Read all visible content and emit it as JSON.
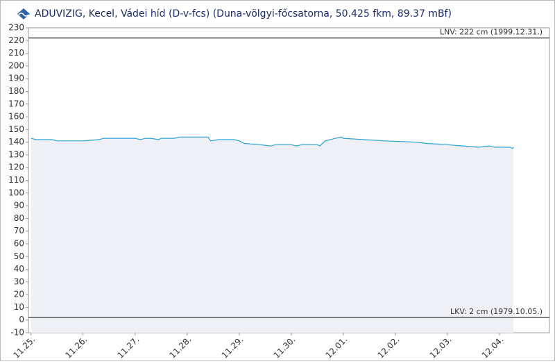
{
  "chart_data": {
    "type": "line",
    "title": "ADUVIZIG, Kecel, Vádei híd  (D-v-fcs) (Duna-völgyi-főcsatorna, 50.425 fkm, 89.37 mBf)",
    "x": [
      0,
      0.1,
      0.4,
      0.5,
      1.0,
      1.3,
      1.4,
      2.0,
      2.1,
      2.2,
      2.3,
      2.45,
      2.5,
      2.6,
      2.75,
      2.85,
      2.95,
      3.4,
      3.45,
      3.6,
      3.9,
      4.0,
      4.1,
      4.4,
      4.6,
      4.7,
      5.0,
      5.1,
      5.2,
      5.5,
      5.55,
      5.65,
      5.75,
      5.85,
      5.95,
      6.0,
      6.4,
      6.8,
      7.4,
      7.6,
      8.0,
      8.3,
      8.6,
      8.8,
      8.9,
      9.2,
      9.25,
      9.27
    ],
    "series": [
      {
        "color": "#29a3d6",
        "fill": "#eef0f6",
        "values": [
          143,
          142,
          142,
          141,
          141,
          142,
          143,
          143,
          142,
          143,
          143,
          142,
          143,
          143,
          143,
          144,
          144,
          144,
          141,
          142,
          142,
          141,
          139,
          138,
          137,
          138,
          138,
          137,
          138,
          138,
          137,
          141,
          142,
          143,
          144,
          143,
          142,
          141,
          140,
          139,
          138,
          137,
          136,
          137,
          136,
          136,
          135,
          136
        ]
      }
    ],
    "xlim": [
      -0.05,
      9.96
    ],
    "xticks": [
      {
        "value": 0,
        "label": "11.25."
      },
      {
        "value": 1,
        "label": "11.26."
      },
      {
        "value": 2,
        "label": "11.27."
      },
      {
        "value": 3,
        "label": "11.28."
      },
      {
        "value": 4,
        "label": "11.29."
      },
      {
        "value": 5,
        "label": "11.30."
      },
      {
        "value": 6,
        "label": "12.01."
      },
      {
        "value": 7,
        "label": "12.02."
      },
      {
        "value": 8,
        "label": "12.03."
      },
      {
        "value": 9,
        "label": "12.04."
      }
    ],
    "ylim": [
      -10,
      230
    ],
    "yticks": [
      -10,
      0,
      10,
      20,
      30,
      40,
      50,
      60,
      70,
      80,
      90,
      100,
      110,
      120,
      130,
      140,
      150,
      160,
      170,
      180,
      190,
      200,
      210,
      220,
      230
    ],
    "reference_lines": [
      {
        "value": 222,
        "label": "LNV: 222 cm (1999.12.31.)",
        "color": "#555555"
      },
      {
        "value": 2,
        "label": "LKV: 2 cm (1979.10.05.)",
        "color": "#555555"
      }
    ]
  }
}
